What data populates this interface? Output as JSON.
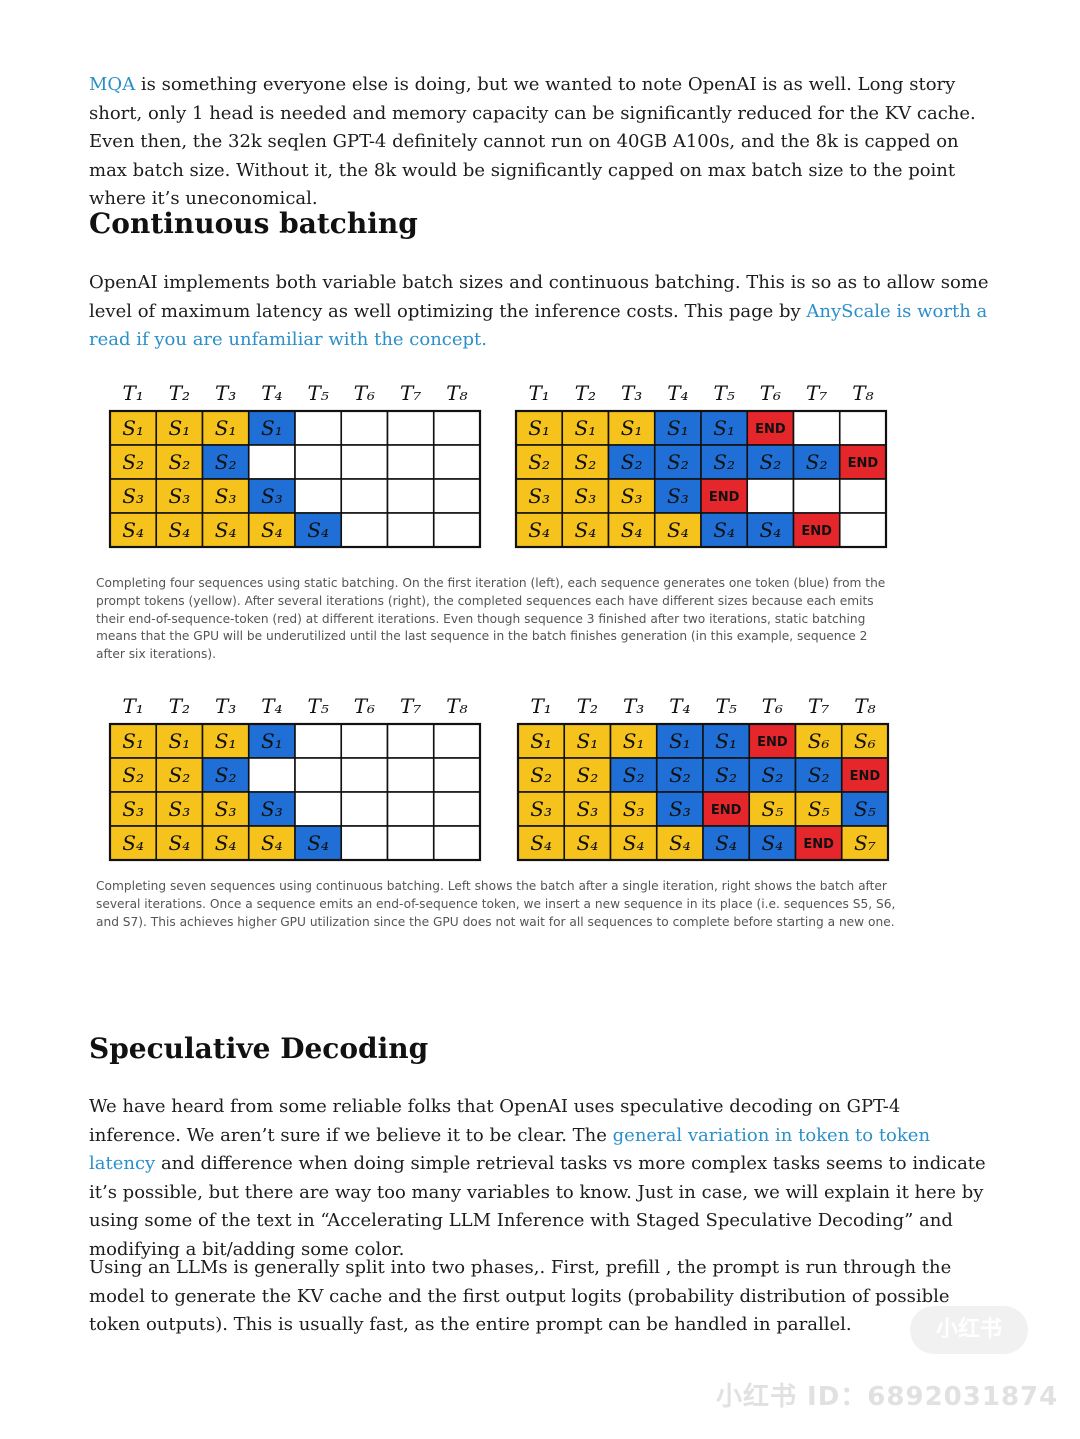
{
  "intro": {
    "link": "MQA",
    "text": " is something everyone else is doing, but we wanted to note OpenAI is as well. Long story short, only 1 head is needed and memory capacity can be significantly reduced for the KV cache. Even then, the 32k seqlen GPT-4 definitely cannot run on 40GB A100s, and the 8k is capped on max batch size. Without it, the 8k would be significantly capped on max batch size to the point where it’s uneconomical."
  },
  "continuous": {
    "heading": "Continuous batching",
    "para_text": "OpenAI implements both variable batch sizes and continuous batching. This is so as to allow some level of maximum latency as well optimizing the inference costs. This page by ",
    "para_link": "AnyScale is worth a read if you are unfamiliar with the concept.",
    "caption1": "Completing four sequences using static batching. On the first iteration (left), each sequence generates one token (blue) from the prompt tokens (yellow). After several iterations (right), the completed sequences each have different sizes because each emits their end-of-sequence-token (red) at different iterations. Even though sequence 3 finished after two iterations, static batching means that the GPU will be underutilized until the last sequence in the batch finishes generation (in this example, sequence 2 after six iterations).",
    "caption2": "Completing seven sequences using continuous batching. Left shows the batch after a single iteration, right shows the batch after several iterations. Once a sequence emits an end-of-sequence token, we insert a new sequence in its place (i.e. sequences S5, S6, and S7). This achieves higher GPU utilization since the GPU does not wait for all sequences to complete before starting a new one."
  },
  "diagrams": {
    "headers": [
      "T1",
      "T2",
      "T3",
      "T4",
      "T5",
      "T6",
      "T7",
      "T8"
    ],
    "colors": {
      "prompt": "#f6c21c",
      "generated": "#1f6fd6",
      "end": "#e5262b",
      "empty": "#ffffff"
    },
    "grids": [
      {
        "name": "static-batching-left",
        "rows": [
          [
            [
              "S1",
              "y"
            ],
            [
              "S1",
              "y"
            ],
            [
              "S1",
              "y"
            ],
            [
              "S1",
              "b"
            ],
            [
              "",
              ""
            ],
            [
              "",
              ""
            ],
            [
              "",
              ""
            ],
            [
              "",
              ""
            ]
          ],
          [
            [
              "S2",
              "y"
            ],
            [
              "S2",
              "y"
            ],
            [
              "S2",
              "b"
            ],
            [
              "",
              ""
            ],
            [
              "",
              ""
            ],
            [
              "",
              ""
            ],
            [
              "",
              ""
            ],
            [
              "",
              ""
            ]
          ],
          [
            [
              "S3",
              "y"
            ],
            [
              "S3",
              "y"
            ],
            [
              "S3",
              "y"
            ],
            [
              "S3",
              "b"
            ],
            [
              "",
              ""
            ],
            [
              "",
              ""
            ],
            [
              "",
              ""
            ],
            [
              "",
              ""
            ]
          ],
          [
            [
              "S4",
              "y"
            ],
            [
              "S4",
              "y"
            ],
            [
              "S4",
              "y"
            ],
            [
              "S4",
              "y"
            ],
            [
              "S4",
              "b"
            ],
            [
              "",
              ""
            ],
            [
              "",
              ""
            ],
            [
              "",
              ""
            ]
          ]
        ]
      },
      {
        "name": "static-batching-right",
        "rows": [
          [
            [
              "S1",
              "y"
            ],
            [
              "S1",
              "y"
            ],
            [
              "S1",
              "y"
            ],
            [
              "S1",
              "b"
            ],
            [
              "S1",
              "b"
            ],
            [
              "END",
              "r"
            ],
            [
              "",
              ""
            ],
            [
              "",
              ""
            ]
          ],
          [
            [
              "S2",
              "y"
            ],
            [
              "S2",
              "y"
            ],
            [
              "S2",
              "b"
            ],
            [
              "S2",
              "b"
            ],
            [
              "S2",
              "b"
            ],
            [
              "S2",
              "b"
            ],
            [
              "S2",
              "b"
            ],
            [
              "END",
              "r"
            ]
          ],
          [
            [
              "S3",
              "y"
            ],
            [
              "S3",
              "y"
            ],
            [
              "S3",
              "y"
            ],
            [
              "S3",
              "b"
            ],
            [
              "END",
              "r"
            ],
            [
              "",
              ""
            ],
            [
              "",
              ""
            ],
            [
              "",
              ""
            ]
          ],
          [
            [
              "S4",
              "y"
            ],
            [
              "S4",
              "y"
            ],
            [
              "S4",
              "y"
            ],
            [
              "S4",
              "y"
            ],
            [
              "S4",
              "b"
            ],
            [
              "S4",
              "b"
            ],
            [
              "END",
              "r"
            ],
            [
              "",
              ""
            ]
          ]
        ]
      },
      {
        "name": "continuous-batching-left",
        "rows": [
          [
            [
              "S1",
              "y"
            ],
            [
              "S1",
              "y"
            ],
            [
              "S1",
              "y"
            ],
            [
              "S1",
              "b"
            ],
            [
              "",
              ""
            ],
            [
              "",
              ""
            ],
            [
              "",
              ""
            ],
            [
              "",
              ""
            ]
          ],
          [
            [
              "S2",
              "y"
            ],
            [
              "S2",
              "y"
            ],
            [
              "S2",
              "b"
            ],
            [
              "",
              ""
            ],
            [
              "",
              ""
            ],
            [
              "",
              ""
            ],
            [
              "",
              ""
            ],
            [
              "",
              ""
            ]
          ],
          [
            [
              "S3",
              "y"
            ],
            [
              "S3",
              "y"
            ],
            [
              "S3",
              "y"
            ],
            [
              "S3",
              "b"
            ],
            [
              "",
              ""
            ],
            [
              "",
              ""
            ],
            [
              "",
              ""
            ],
            [
              "",
              ""
            ]
          ],
          [
            [
              "S4",
              "y"
            ],
            [
              "S4",
              "y"
            ],
            [
              "S4",
              "y"
            ],
            [
              "S4",
              "y"
            ],
            [
              "S4",
              "b"
            ],
            [
              "",
              ""
            ],
            [
              "",
              ""
            ],
            [
              "",
              ""
            ]
          ]
        ]
      },
      {
        "name": "continuous-batching-right",
        "rows": [
          [
            [
              "S1",
              "y"
            ],
            [
              "S1",
              "y"
            ],
            [
              "S1",
              "y"
            ],
            [
              "S1",
              "b"
            ],
            [
              "S1",
              "b"
            ],
            [
              "END",
              "r"
            ],
            [
              "S6",
              "y"
            ],
            [
              "S6",
              "y"
            ]
          ],
          [
            [
              "S2",
              "y"
            ],
            [
              "S2",
              "y"
            ],
            [
              "S2",
              "b"
            ],
            [
              "S2",
              "b"
            ],
            [
              "S2",
              "b"
            ],
            [
              "S2",
              "b"
            ],
            [
              "S2",
              "b"
            ],
            [
              "END",
              "r"
            ]
          ],
          [
            [
              "S3",
              "y"
            ],
            [
              "S3",
              "y"
            ],
            [
              "S3",
              "y"
            ],
            [
              "S3",
              "b"
            ],
            [
              "END",
              "r"
            ],
            [
              "S5",
              "y"
            ],
            [
              "S5",
              "y"
            ],
            [
              "S5",
              "b"
            ]
          ],
          [
            [
              "S4",
              "y"
            ],
            [
              "S4",
              "y"
            ],
            [
              "S4",
              "y"
            ],
            [
              "S4",
              "y"
            ],
            [
              "S4",
              "b"
            ],
            [
              "S4",
              "b"
            ],
            [
              "END",
              "r"
            ],
            [
              "S7",
              "y"
            ]
          ]
        ]
      }
    ]
  },
  "speculative": {
    "heading": "Speculative Decoding",
    "p1_a": "We have heard from some reliable folks that OpenAI uses speculative decoding on GPT-4 inference. We aren’t sure if we believe it to be clear. The ",
    "p1_link": "general variation in token to token latency",
    "p1_b": " and difference when doing simple retrieval tasks vs more complex tasks seems to indicate it’s possible, but there are way too many variables to know. Just in case, we will explain it here by using some of the text in “Accelerating LLM Inference with Staged Speculative Decoding” and modifying a bit/adding some color.",
    "p2": "Using an LLMs is generally split into two phases,. First, prefill , the prompt is run through the model to generate the KV cache and the first output logits (probability distribution of possible token outputs). This is usually fast, as the entire prompt can be handled in parallel."
  },
  "watermark": {
    "badge": "小红书",
    "id_text": "小红书 ID：6892031874"
  }
}
